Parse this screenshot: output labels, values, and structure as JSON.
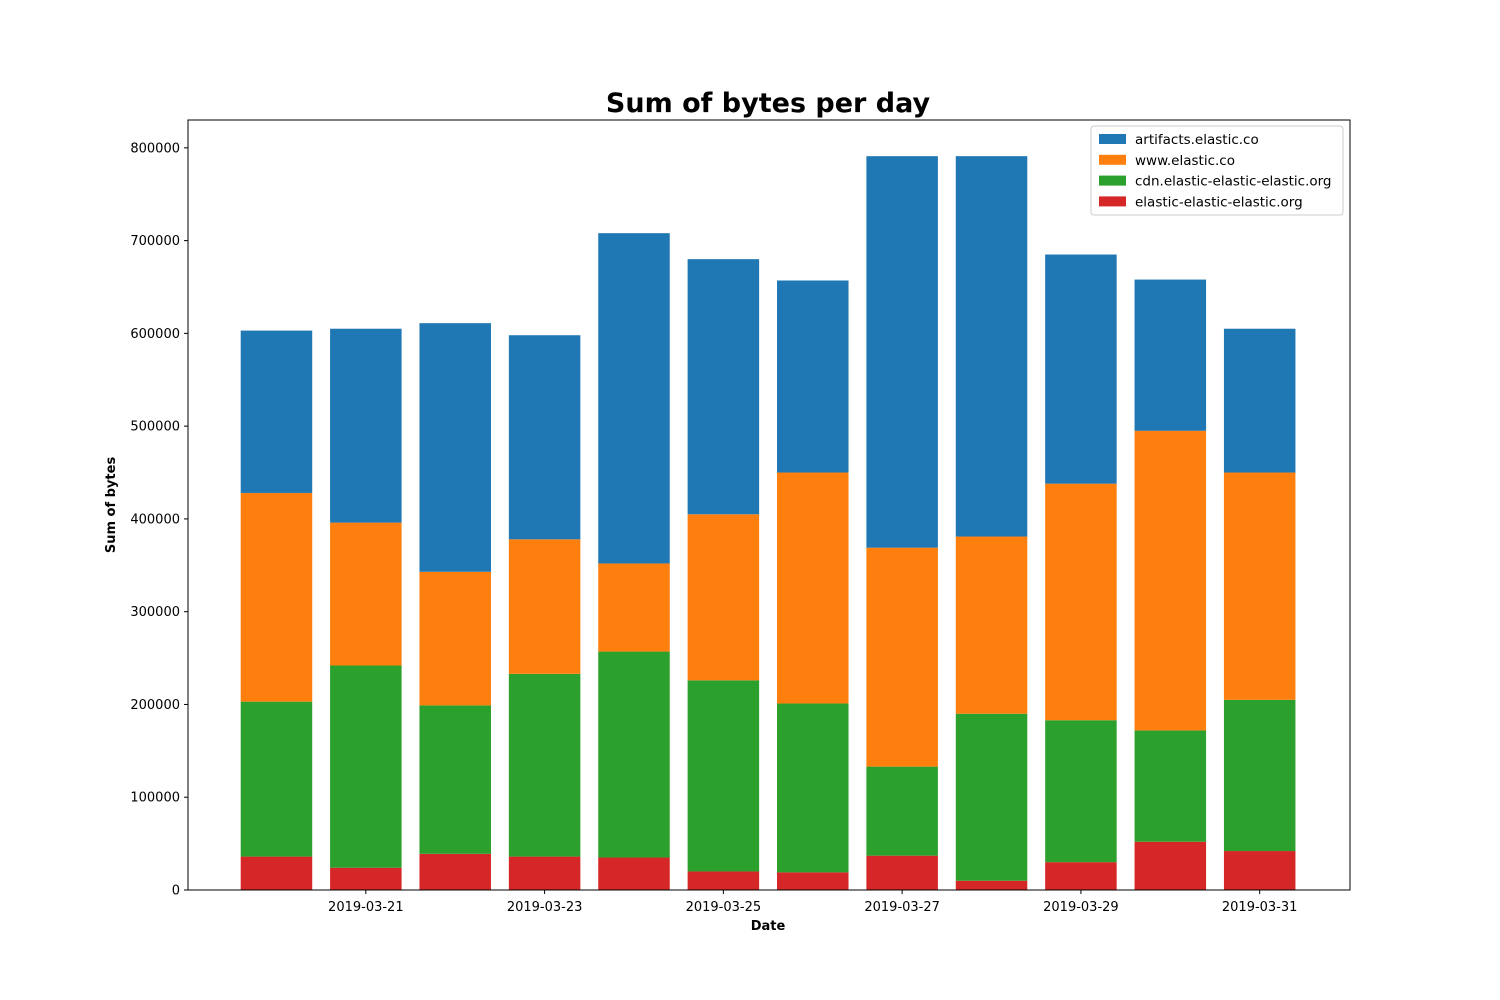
{
  "chart_data": {
    "type": "bar",
    "stacked": true,
    "title": "Sum of bytes per day",
    "xlabel": "Date",
    "ylabel": "Sum of bytes",
    "ylim": [
      0,
      830000
    ],
    "yticks": [
      0,
      100000,
      200000,
      300000,
      400000,
      500000,
      600000,
      700000,
      800000
    ],
    "ytick_labels": [
      "0",
      "100000",
      "200000",
      "300000",
      "400000",
      "500000",
      "600000",
      "700000",
      "800000"
    ],
    "xlim": [
      "2019-03-19T00:15",
      "2019-04-01T00:15"
    ],
    "xtick_labels": [
      "2019-03-21",
      "2019-03-23",
      "2019-03-25",
      "2019-03-27",
      "2019-03-29",
      "2019-03-31"
    ],
    "legend_position": "top-right",
    "grid": false,
    "x": [
      "2019-03-20",
      "2019-03-21",
      "2019-03-22",
      "2019-03-23",
      "2019-03-24",
      "2019-03-25",
      "2019-03-26",
      "2019-03-27",
      "2019-03-28",
      "2019-03-29",
      "2019-03-30",
      "2019-03-31"
    ],
    "series": [
      {
        "name": "elastic-elastic-elastic.org",
        "color": "#d62728",
        "values": [
          36000,
          24000,
          39000,
          36000,
          35000,
          20000,
          19000,
          37000,
          10000,
          30000,
          52000,
          42000
        ]
      },
      {
        "name": "cdn.elastic-elastic-elastic.org",
        "color": "#2ca02c",
        "values": [
          167000,
          218000,
          160000,
          197000,
          222000,
          206000,
          182000,
          96000,
          180000,
          153000,
          120000,
          163000
        ]
      },
      {
        "name": "www.elastic.co",
        "color": "#ff7f0e",
        "values": [
          225000,
          154000,
          144000,
          145000,
          95000,
          179000,
          249000,
          236000,
          191000,
          255000,
          323000,
          245000
        ]
      },
      {
        "name": "artifacts.elastic.co",
        "color": "#1f77b4",
        "values": [
          175000,
          209000,
          268000,
          220000,
          356000,
          275000,
          207000,
          422000,
          410000,
          247000,
          163000,
          155000
        ]
      }
    ]
  }
}
